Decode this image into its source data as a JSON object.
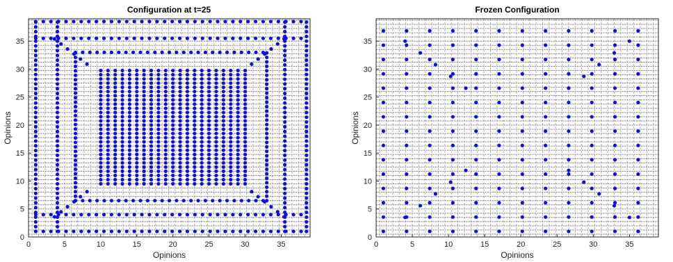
{
  "chart_data": [
    {
      "type": "scatter",
      "title": "Configuration at t=25",
      "xlabel": "Opinions",
      "ylabel": "Opinions",
      "xlim": [
        0,
        39
      ],
      "ylim": [
        0,
        39
      ],
      "xticks": [
        0,
        5,
        10,
        15,
        20,
        25,
        30,
        35
      ],
      "yticks": [
        0,
        5,
        10,
        15,
        20,
        25,
        30,
        35
      ],
      "grid": false,
      "series": [
        {
          "color": "#1010d8",
          "description_of_layout": "",
          "center_block": {
            "x_range": [
              10,
              30
            ],
            "y_range": [
              9.5,
              30
            ],
            "step": 1
          },
          "inner_ring": {
            "y_values": [
              6.5,
              33
            ],
            "x_values": [
              6.5,
              33
            ],
            "span": [
              6.5,
              33
            ]
          },
          "outer_ring": {
            "y_values": [
              1,
              4,
              35.5,
              38.5
            ],
            "x_values": [
              1,
              4,
              35.5,
              38.5
            ],
            "span": [
              1,
              38.5
            ]
          }
        }
      ]
    },
    {
      "type": "scatter",
      "title": "Frozen Configuration",
      "xlabel": "Opinions",
      "ylabel": "Opinions",
      "xlim": [
        0,
        39
      ],
      "ylim": [
        0,
        39
      ],
      "xticks": [
        0,
        5,
        10,
        15,
        20,
        25,
        30,
        35
      ],
      "yticks": [
        0,
        5,
        10,
        15,
        20,
        25,
        30,
        35
      ],
      "grid": false,
      "series": [
        {
          "color": "#1010d8",
          "lattice_step": 3.2,
          "lattice_start": 1
        }
      ]
    }
  ]
}
